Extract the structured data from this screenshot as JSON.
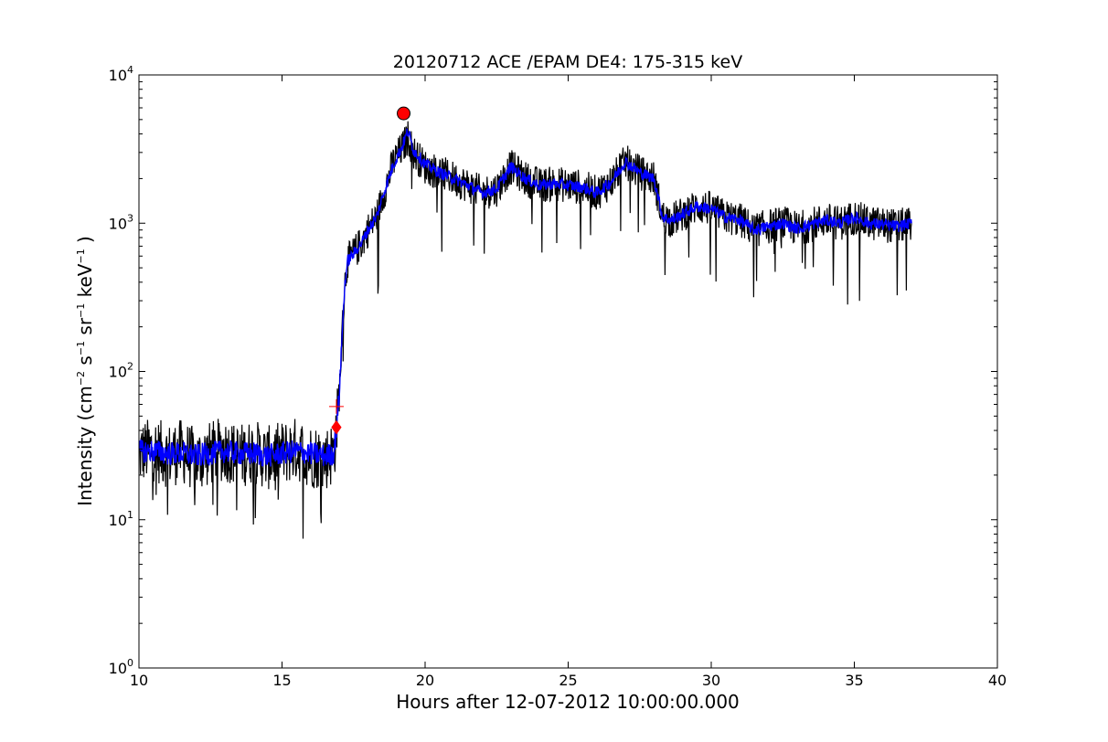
{
  "chart_data": {
    "type": "line",
    "title": "20120712 ACE /EPAM DE4: 175-315 keV",
    "xlabel": "Hours after 12-07-2012 10:00:00.000",
    "ylabel": {
      "prefix": "Intensity (cm",
      "sup1": "−2",
      "mid1": " s",
      "sup2": "−1",
      "mid2": " sr",
      "sup3": "−1",
      "mid3": " keV",
      "sup4": "−1",
      "suffix": " )"
    },
    "xlim": [
      10,
      40
    ],
    "ylim": [
      1,
      10000
    ],
    "yscale": "log",
    "grid": false,
    "x_ticks": [
      "10",
      "15",
      "20",
      "25",
      "30",
      "35",
      "40"
    ],
    "x_tick_values": [
      10,
      15,
      20,
      25,
      30,
      35,
      40
    ],
    "y_ticks": [
      {
        "base": "10",
        "exp": "0",
        "value": 1
      },
      {
        "base": "10",
        "exp": "1",
        "value": 10
      },
      {
        "base": "10",
        "exp": "2",
        "value": 100
      },
      {
        "base": "10",
        "exp": "3",
        "value": 1000
      },
      {
        "base": "10",
        "exp": "4",
        "value": 10000
      }
    ],
    "series": [
      {
        "style": "raw",
        "color": "#000000",
        "x": [
          10.0,
          10.5,
          11.0,
          11.5,
          12.0,
          12.5,
          13.0,
          13.5,
          14.0,
          14.5,
          15.0,
          15.5,
          16.0,
          16.5,
          16.8,
          16.9,
          17.0,
          17.1,
          17.2,
          17.3,
          17.5,
          17.8,
          18.0,
          18.3,
          18.6,
          18.9,
          19.2,
          19.4,
          19.6,
          20.0,
          20.5,
          21.0,
          21.5,
          22.0,
          22.5,
          23.0,
          23.5,
          24.0,
          24.5,
          25.0,
          25.5,
          26.0,
          26.5,
          27.0,
          27.5,
          28.0,
          28.3,
          28.6,
          29.0,
          29.5,
          30.0,
          30.5,
          31.0,
          31.5,
          32.0,
          32.5,
          33.0,
          33.5,
          34.0,
          34.5,
          35.0,
          35.5,
          36.0,
          36.5,
          37.0
        ],
        "y": [
          28,
          30,
          27,
          29,
          25,
          28,
          30,
          27,
          29,
          26,
          28,
          30,
          27,
          26,
          28,
          40,
          70,
          180,
          400,
          560,
          620,
          750,
          900,
          1100,
          1700,
          2600,
          3200,
          3800,
          3000,
          2400,
          2200,
          2000,
          1800,
          1600,
          1700,
          2400,
          2000,
          1800,
          1850,
          1800,
          1750,
          1600,
          1900,
          2600,
          2200,
          2000,
          1100,
          1050,
          1150,
          1300,
          1250,
          1100,
          1050,
          900,
          950,
          1000,
          920,
          980,
          1050,
          1000,
          1100,
          1000,
          980,
          950,
          1000
        ]
      },
      {
        "style": "smoothed",
        "color": "#0000ff",
        "x": [
          10.0,
          10.5,
          11.0,
          11.5,
          12.0,
          12.5,
          13.0,
          13.5,
          14.0,
          14.5,
          15.0,
          15.5,
          16.0,
          16.5,
          16.8,
          16.9,
          17.0,
          17.1,
          17.2,
          17.3,
          17.5,
          17.8,
          18.0,
          18.3,
          18.6,
          18.9,
          19.2,
          19.4,
          19.6,
          20.0,
          20.5,
          21.0,
          21.5,
          22.0,
          22.5,
          23.0,
          23.5,
          24.0,
          24.5,
          25.0,
          25.5,
          26.0,
          26.5,
          27.0,
          27.5,
          28.0,
          28.3,
          28.6,
          29.0,
          29.5,
          30.0,
          30.5,
          31.0,
          31.5,
          32.0,
          32.5,
          33.0,
          33.5,
          34.0,
          34.5,
          35.0,
          35.5,
          36.0,
          36.5,
          37.0
        ],
        "y": [
          29,
          29,
          28,
          28,
          27,
          28,
          29,
          28,
          28,
          27,
          28,
          29,
          28,
          27,
          28,
          40,
          70,
          180,
          400,
          560,
          620,
          750,
          900,
          1100,
          1700,
          2500,
          3300,
          4200,
          3100,
          2500,
          2200,
          2000,
          1800,
          1600,
          1700,
          2400,
          2000,
          1800,
          1850,
          1800,
          1750,
          1600,
          1900,
          2600,
          2200,
          2000,
          1100,
          1050,
          1150,
          1300,
          1250,
          1100,
          1050,
          900,
          950,
          1000,
          920,
          980,
          1050,
          1000,
          1100,
          1000,
          980,
          950,
          1000
        ]
      }
    ],
    "markers": [
      {
        "shape": "circle",
        "x": 19.25,
        "y": 5500,
        "color": "#ff0000"
      },
      {
        "shape": "diamond",
        "x": 16.9,
        "y": 42,
        "color": "#ff0000"
      },
      {
        "shape": "plus",
        "x": 16.9,
        "y": 58,
        "color": "#ff0000"
      }
    ]
  }
}
